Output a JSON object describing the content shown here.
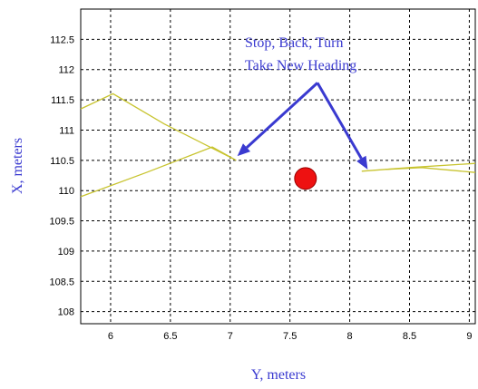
{
  "chart_data": {
    "type": "line",
    "xlabel": "Y, meters",
    "ylabel": "X, meters",
    "xlim": [
      5.75,
      9.05
    ],
    "ylim": [
      107.8,
      113.0
    ],
    "xticks": [
      6,
      6.5,
      7,
      7.5,
      8,
      8.5,
      9
    ],
    "yticks": [
      108,
      108.5,
      109,
      109.5,
      110,
      110.5,
      111,
      111.5,
      112,
      112.5
    ],
    "grid": true,
    "series": [
      {
        "points": [
          [
            5.75,
            111.35
          ],
          [
            6.02,
            111.6
          ],
          [
            6.45,
            111.1
          ],
          [
            7.05,
            110.5
          ],
          [
            6.85,
            110.72
          ],
          [
            6.3,
            110.3
          ],
          [
            5.75,
            109.9
          ]
        ]
      },
      {
        "points": [
          [
            8.1,
            110.32
          ],
          [
            8.5,
            110.38
          ],
          [
            9.05,
            110.45
          ]
        ]
      },
      {
        "points": [
          [
            8.3,
            110.35
          ],
          [
            8.6,
            110.38
          ],
          [
            9.05,
            110.3
          ]
        ]
      }
    ],
    "series_color": "#c8c430",
    "marker": {
      "x": 7.63,
      "y": 110.2,
      "color": "#ee1111"
    },
    "annotation": {
      "lines": [
        "Stop, Back, Turn",
        "Take New Heading"
      ],
      "color": "#3a3ad0",
      "arrow_origin": [
        7.73,
        111.78
      ],
      "arrow_targets": [
        [
          7.06,
          110.57
        ],
        [
          8.15,
          110.35
        ]
      ]
    }
  }
}
